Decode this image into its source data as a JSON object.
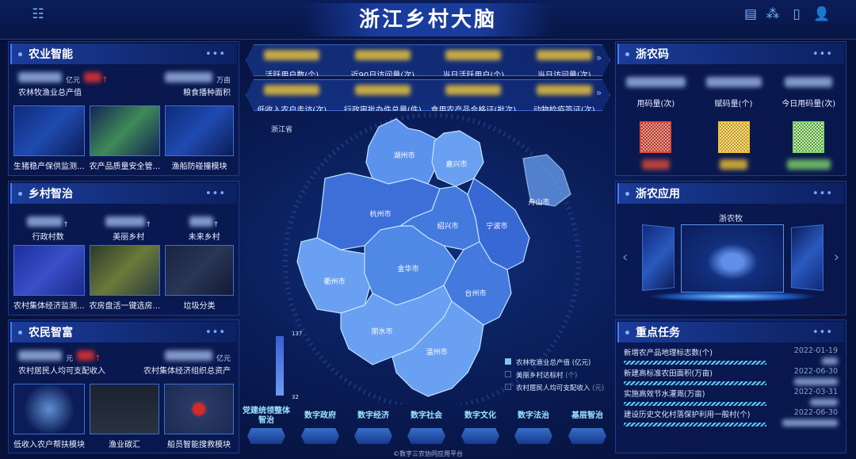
{
  "header": {
    "title": "浙江乡村大脑",
    "icons": [
      "menu-grid-icon",
      "document-icon",
      "cubes-icon",
      "mobile-icon",
      "user-icon"
    ]
  },
  "agri": {
    "title": "农业智能",
    "more": "•••",
    "stat1": {
      "unit": "亿元",
      "label": "农林牧渔业总产值"
    },
    "stat2": {
      "unit": "万亩",
      "label": "粮食播种面积"
    },
    "thumbs": [
      "生猪稳产保供监测...",
      "农产品质量安全管...",
      "渔船防碰撞模块"
    ]
  },
  "rural": {
    "title": "乡村智治",
    "more": "•••",
    "stats": [
      "行政村数",
      "美丽乡村",
      "未来乡村"
    ],
    "thumbs": [
      "农村集体经济监测...",
      "农房盘活一键选房...",
      "垃圾分类"
    ]
  },
  "farmer": {
    "title": "农民智富",
    "more": "•••",
    "stat1": {
      "unit": "元",
      "label": "农村居民人均可支配收入"
    },
    "stat2": {
      "unit": "亿元",
      "label": "农村集体经济组织总资产"
    },
    "thumbs": [
      "低收入农户帮扶模块",
      "渔业碳汇",
      "船员智能搜救模块"
    ]
  },
  "stats_row1": [
    "活跃用户数(个)",
    "近90日访问量(次)",
    "当日活跃用户(个)",
    "当日访问量(次)"
  ],
  "stats_row2": [
    "低收入农户走访(次)",
    "行政审批办件总量(件)",
    "食用农产品合格证(批次)",
    "动物检疫签证(次)"
  ],
  "map": {
    "province": "浙江省",
    "cities": [
      "湖州市",
      "嘉兴市",
      "杭州市",
      "绍兴市",
      "宁波市",
      "舟山市",
      "衢州市",
      "金华市",
      "台州市",
      "丽水市",
      "温州市"
    ],
    "scale_max": "137",
    "scale_min": "32",
    "legend": [
      {
        "label": "农林牧渔业总产值",
        "unit": "(亿元)",
        "active": true
      },
      {
        "label": "美丽乡村达标村",
        "unit": "(个)",
        "active": false
      },
      {
        "label": "农村居民人均可支配收入",
        "unit": "(元)",
        "active": false
      }
    ]
  },
  "nav": [
    "党建统领整体智治",
    "数字政府",
    "数字经济",
    "数字社会",
    "数字文化",
    "数字法治",
    "基层智治"
  ],
  "footer": "©数字三农协同应用平台",
  "code": {
    "title": "浙农码",
    "more": "•••",
    "labels": [
      "用码量(次)",
      "赋码量(个)",
      "今日用码量(次)"
    ],
    "colors": [
      "#e04a3a",
      "#f0c232",
      "#7fd36a"
    ]
  },
  "apps": {
    "title": "浙农应用",
    "more": "•••",
    "current": "浙农牧"
  },
  "tasks": {
    "title": "重点任务",
    "more": "•••",
    "items": [
      {
        "name": "新增农产品地理标志数(个)",
        "date": "2022-01-19"
      },
      {
        "name": "新建高标准农田面积(万亩)",
        "date": "2022-06-30"
      },
      {
        "name": "实施高效节水灌溉(万亩)",
        "date": "2022-03-31"
      },
      {
        "name": "建设历史文化村落保护利用一般村(个)",
        "date": "2022-06-30"
      }
    ]
  }
}
